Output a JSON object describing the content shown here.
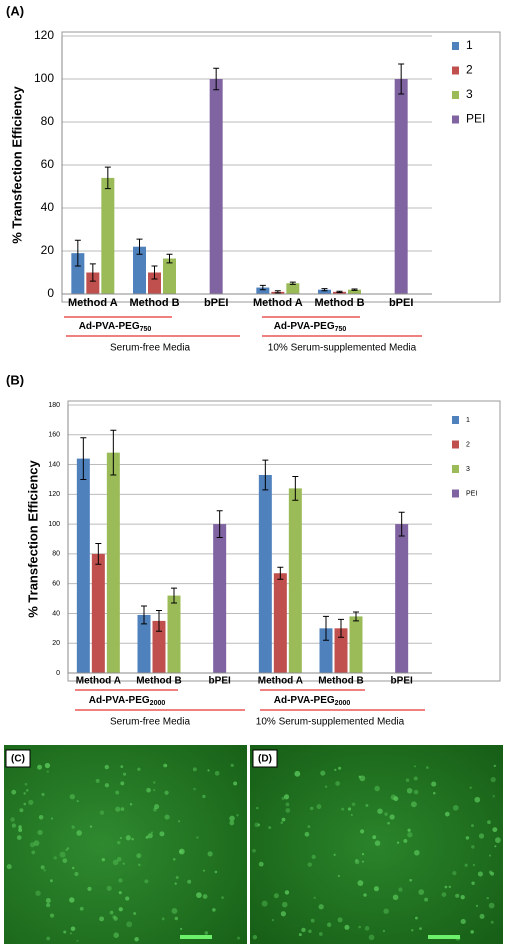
{
  "chart_data": [
    {
      "type": "bar",
      "title": "(A)",
      "y_label": "% Transfection Efficiency",
      "categories": [
        "Method A",
        "Method B",
        "bPEI",
        "Method A",
        "Method B",
        "bPEI"
      ],
      "series": [
        {
          "name": "1",
          "color": "#4f81bd",
          "values": [
            19,
            22,
            null,
            3,
            2,
            null
          ],
          "errors": [
            6,
            3.5,
            null,
            1,
            0.5,
            null
          ]
        },
        {
          "name": "2",
          "color": "#c0504d",
          "values": [
            10,
            10,
            null,
            1,
            1,
            null
          ],
          "errors": [
            4,
            3,
            null,
            0.5,
            0.3,
            null
          ]
        },
        {
          "name": "3",
          "color": "#9bbb59",
          "values": [
            54,
            16.5,
            null,
            5,
            2,
            null
          ],
          "errors": [
            5,
            2,
            null,
            0.5,
            0.3,
            null
          ]
        },
        {
          "name": "PEI",
          "color": "#8064a2",
          "values": [
            null,
            null,
            100,
            null,
            null,
            100
          ],
          "errors": [
            null,
            null,
            5,
            null,
            null,
            7
          ]
        }
      ],
      "ylim": [
        0,
        120
      ],
      "yticks": [
        0,
        20,
        40,
        60,
        80,
        100,
        120
      ],
      "grid": true,
      "legend": "right",
      "group_labels": [
        {
          "text": "Ad-PVA-PEG",
          "subscript": "750"
        },
        {
          "text": "Ad-PVA-PEG",
          "subscript": "750"
        }
      ],
      "media_labels": [
        "Serum-free Media",
        "10% Serum-supplemented Media"
      ]
    },
    {
      "type": "bar",
      "title": "(B)",
      "y_label": "% Transfection Efficiency",
      "categories": [
        "Method A",
        "Method B",
        "bPEI",
        "Method A",
        "Method B",
        "bPEI"
      ],
      "series": [
        {
          "name": "1",
          "color": "#4f81bd",
          "values": [
            144,
            39,
            null,
            133,
            30,
            null
          ],
          "errors": [
            14,
            6,
            null,
            10,
            8,
            null
          ]
        },
        {
          "name": "2",
          "color": "#c0504d",
          "values": [
            80,
            35,
            null,
            67,
            30,
            null
          ],
          "errors": [
            7,
            7,
            null,
            4,
            6,
            null
          ]
        },
        {
          "name": "3",
          "color": "#9bbb59",
          "values": [
            148,
            52,
            null,
            124,
            38,
            null
          ],
          "errors": [
            15,
            5,
            null,
            8,
            3,
            null
          ]
        },
        {
          "name": "PEI",
          "color": "#8064a2",
          "values": [
            null,
            null,
            100,
            null,
            null,
            100
          ],
          "errors": [
            null,
            null,
            9,
            null,
            null,
            8
          ]
        }
      ],
      "ylim": [
        0,
        180
      ],
      "yticks": [
        0,
        20,
        40,
        60,
        80,
        100,
        120,
        140,
        160,
        180
      ],
      "grid": true,
      "legend": "right",
      "group_labels": [
        {
          "text": "Ad-PVA-PEG",
          "subscript": "2000"
        },
        {
          "text": "Ad-PVA-PEG",
          "subscript": "2000"
        }
      ],
      "media_labels": [
        "Serum-free Media",
        "10% Serum-supplemented Media"
      ]
    }
  ],
  "images": [
    {
      "label": "(C)"
    },
    {
      "label": "(D)"
    }
  ]
}
